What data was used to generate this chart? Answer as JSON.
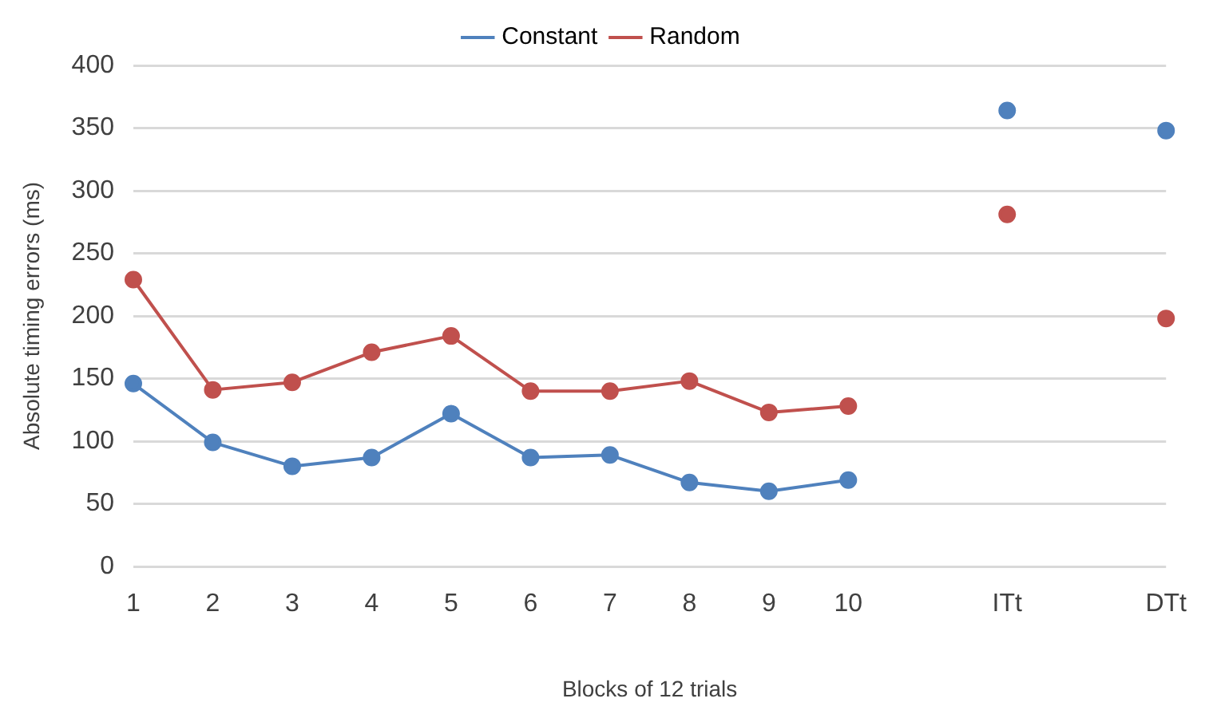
{
  "chart_data": {
    "type": "line",
    "xlabel": "Blocks of 12 trials",
    "ylabel": "Absolute timing errors (ms)",
    "categories": [
      "1",
      "2",
      "3",
      "4",
      "5",
      "6",
      "7",
      "8",
      "9",
      "10",
      null,
      "ITt",
      null,
      "DTt"
    ],
    "series": [
      {
        "name": "Constant",
        "color": "#4f81bd",
        "values": [
          146,
          99,
          80,
          87,
          122,
          87,
          89,
          67,
          60,
          69,
          null,
          364,
          null,
          348
        ]
      },
      {
        "name": "Random",
        "color": "#c0504d",
        "values": [
          229,
          141,
          147,
          171,
          184,
          140,
          140,
          148,
          123,
          128,
          null,
          281,
          null,
          198
        ]
      }
    ],
    "ylim": [
      0,
      400
    ],
    "yticks": [
      0,
      50,
      100,
      150,
      200,
      250,
      300,
      350,
      400
    ],
    "grid": "y",
    "legend": "top",
    "marker": "circle",
    "line_style": "solid"
  }
}
